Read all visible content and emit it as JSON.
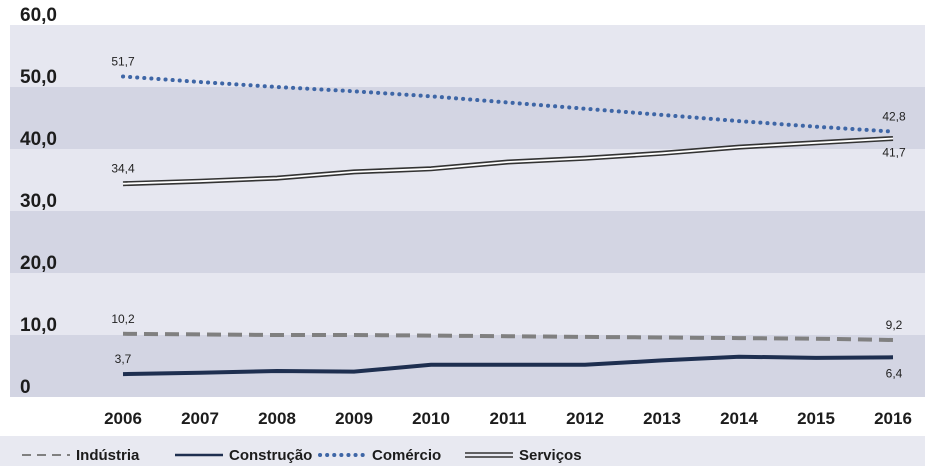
{
  "chart_data": {
    "type": "line",
    "title": "",
    "xlabel": "",
    "ylabel": "",
    "x": [
      "2006",
      "2007",
      "2008",
      "2009",
      "2010",
      "2011",
      "2012",
      "2013",
      "2014",
      "2015",
      "2016"
    ],
    "ylim": [
      0,
      60
    ],
    "yticks": [
      "0",
      "10,0",
      "20,0",
      "30,0",
      "40,0",
      "50,0",
      "60,0"
    ],
    "legend_position": "bottom",
    "series": [
      {
        "name": "Indústria",
        "color": "#808080",
        "style": "dashed",
        "values": [
          10.2,
          10.1,
          10.0,
          10.0,
          9.9,
          9.8,
          9.7,
          9.6,
          9.5,
          9.4,
          9.2
        ],
        "labels": [
          {
            "index": 0,
            "text": "10,2"
          },
          {
            "index": 10,
            "text": "9,2"
          }
        ]
      },
      {
        "name": "Construção",
        "color": "#1e2f50",
        "style": "solid",
        "values": [
          3.7,
          3.9,
          4.2,
          4.1,
          5.2,
          5.2,
          5.2,
          5.9,
          6.5,
          6.3,
          6.4
        ],
        "labels": [
          {
            "index": 0,
            "text": "3,7"
          },
          {
            "index": 10,
            "text": "6,4"
          }
        ]
      },
      {
        "name": "Comércio",
        "color": "#3e66a6",
        "style": "dotted",
        "values": [
          51.7,
          50.8,
          50.0,
          49.3,
          48.5,
          47.5,
          46.5,
          45.5,
          44.5,
          43.6,
          42.8
        ],
        "labels": [
          {
            "index": 0,
            "text": "51,7"
          },
          {
            "index": 10,
            "text": "42,8"
          }
        ]
      },
      {
        "name": "Serviços",
        "color": "#333333",
        "style": "double",
        "values": [
          34.4,
          34.8,
          35.3,
          36.3,
          36.8,
          37.9,
          38.5,
          39.3,
          40.3,
          41.0,
          41.7
        ],
        "labels": [
          {
            "index": 0,
            "text": "34,4"
          },
          {
            "index": 10,
            "text": "41,7"
          }
        ]
      }
    ],
    "colors": {
      "band_light": "#e6e7f0",
      "band_dark": "#d3d5e3",
      "legend_bg": "#e8e9f1"
    }
  }
}
